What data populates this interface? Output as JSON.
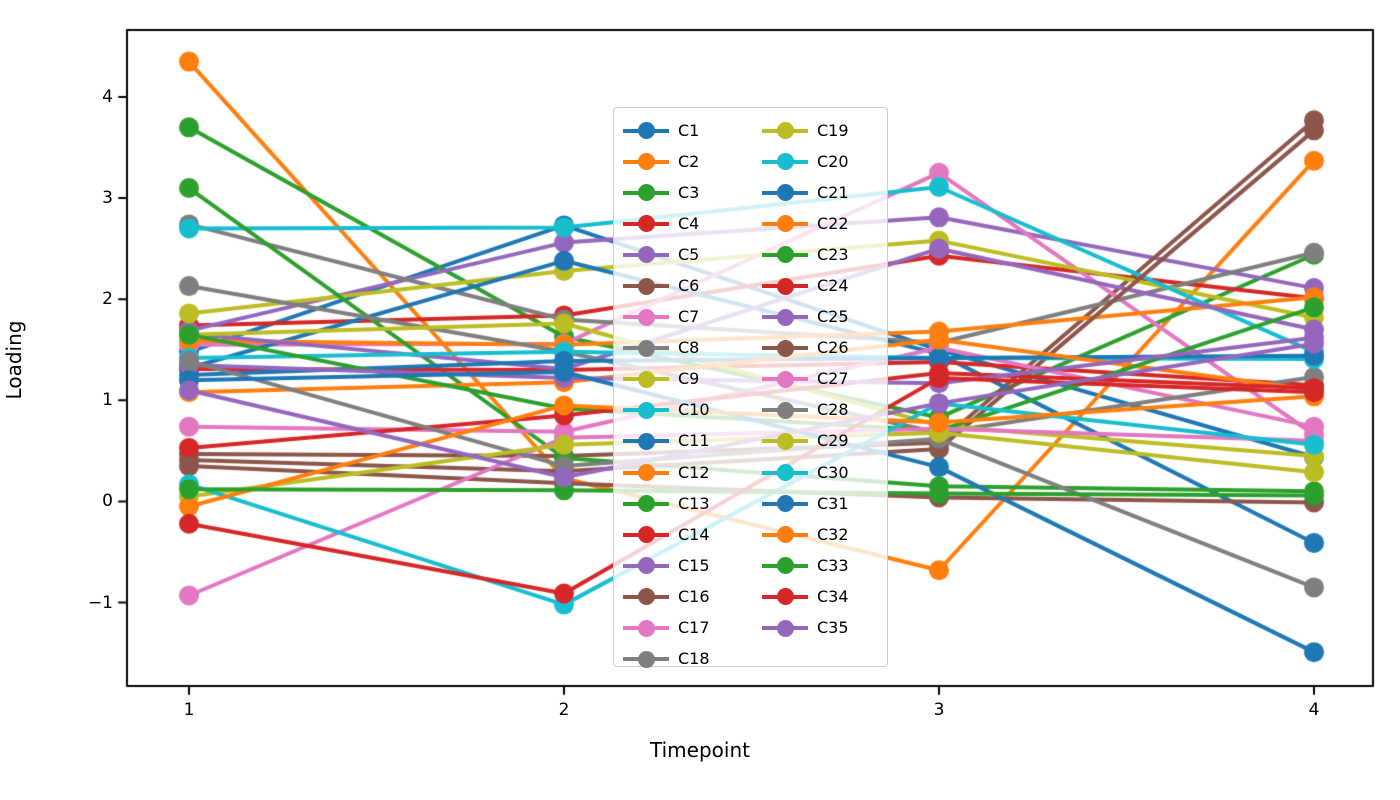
{
  "figure": {
    "background": "#ffffff"
  },
  "chart_data": {
    "type": "line",
    "title": "",
    "xlabel": "Timepoint",
    "ylabel": "Loading",
    "x": [
      1,
      2,
      3,
      4
    ],
    "xticks": [
      "1",
      "2",
      "3",
      "4"
    ],
    "yticks": [
      -1,
      0,
      1,
      2,
      3,
      4
    ],
    "ytick_labels": [
      "−1",
      "0",
      "1",
      "2",
      "3",
      "4"
    ],
    "xlim": [
      0.84,
      4.16
    ],
    "ylim": [
      -1.83,
      4.66
    ],
    "grid": false,
    "legend": {
      "location": "center inside",
      "columns": 2,
      "frame_alpha": 0.8,
      "border_color": "#cccccc"
    },
    "series": [
      {
        "name": "C1",
        "color": "#1f77b4",
        "values": [
          1.48,
          2.73,
          1.5,
          0.44
        ]
      },
      {
        "name": "C2",
        "color": "#ff7f0e",
        "values": [
          4.35,
          0.23,
          -0.68,
          3.37
        ]
      },
      {
        "name": "C3",
        "color": "#2ca02c",
        "values": [
          3.7,
          1.63,
          0.83,
          2.44
        ]
      },
      {
        "name": "C4",
        "color": "#d62728",
        "values": [
          1.74,
          1.84,
          2.43,
          2.01
        ]
      },
      {
        "name": "C5",
        "color": "#9467bd",
        "values": [
          1.69,
          2.56,
          2.81,
          2.11
        ]
      },
      {
        "name": "C6",
        "color": "#8c564b",
        "values": [
          0.47,
          0.45,
          0.58,
          3.77
        ]
      },
      {
        "name": "C7",
        "color": "#e377c2",
        "values": [
          1.55,
          1.56,
          3.25,
          0.66
        ]
      },
      {
        "name": "C8",
        "color": "#7f7f7f",
        "values": [
          2.74,
          1.8,
          1.57,
          2.46
        ]
      },
      {
        "name": "C9",
        "color": "#bcbd22",
        "values": [
          1.86,
          2.28,
          2.58,
          1.82
        ]
      },
      {
        "name": "C10",
        "color": "#17becf",
        "values": [
          2.7,
          2.71,
          3.11,
          1.48
        ]
      },
      {
        "name": "C11",
        "color": "#1f77b4",
        "values": [
          1.32,
          2.38,
          1.46,
          -0.41
        ]
      },
      {
        "name": "C12",
        "color": "#ff7f0e",
        "values": [
          1.59,
          1.55,
          1.68,
          2.02
        ]
      },
      {
        "name": "C13",
        "color": "#2ca02c",
        "values": [
          3.1,
          0.43,
          0.15,
          0.1
        ]
      },
      {
        "name": "C14",
        "color": "#d62728",
        "values": [
          1.31,
          1.3,
          1.38,
          1.15
        ]
      },
      {
        "name": "C15",
        "color": "#9467bd",
        "values": [
          1.66,
          1.31,
          2.5,
          1.7
        ]
      },
      {
        "name": "C16",
        "color": "#8c564b",
        "values": [
          0.41,
          0.3,
          0.52,
          3.67
        ]
      },
      {
        "name": "C17",
        "color": "#e377c2",
        "values": [
          0.74,
          0.69,
          1.52,
          0.74
        ]
      },
      {
        "name": "C18",
        "color": "#7f7f7f",
        "values": [
          2.13,
          1.48,
          0.68,
          1.23
        ]
      },
      {
        "name": "C19",
        "color": "#bcbd22",
        "values": [
          1.65,
          1.76,
          0.75,
          0.45
        ]
      },
      {
        "name": "C20",
        "color": "#17becf",
        "values": [
          1.42,
          1.48,
          1.42,
          1.41
        ]
      },
      {
        "name": "C21",
        "color": "#1f77b4",
        "values": [
          1.25,
          1.39,
          1.42,
          1.44
        ]
      },
      {
        "name": "C22",
        "color": "#ff7f0e",
        "values": [
          1.08,
          1.18,
          1.6,
          1.1
        ]
      },
      {
        "name": "C23",
        "color": "#2ca02c",
        "values": [
          1.65,
          0.92,
          0.7,
          1.92
        ]
      },
      {
        "name": "C24",
        "color": "#d62728",
        "values": [
          0.53,
          0.85,
          1.27,
          1.12
        ]
      },
      {
        "name": "C25",
        "color": "#9467bd",
        "values": [
          1.35,
          1.22,
          1.17,
          1.62
        ]
      },
      {
        "name": "C26",
        "color": "#8c564b",
        "values": [
          0.35,
          0.18,
          0.04,
          -0.01
        ]
      },
      {
        "name": "C27",
        "color": "#e377c2",
        "values": [
          -0.93,
          0.63,
          0.72,
          0.6
        ]
      },
      {
        "name": "C28",
        "color": "#7f7f7f",
        "values": [
          1.39,
          0.35,
          0.62,
          -0.85
        ]
      },
      {
        "name": "C29",
        "color": "#bcbd22",
        "values": [
          0.05,
          0.56,
          0.68,
          0.29
        ]
      },
      {
        "name": "C30",
        "color": "#17becf",
        "values": [
          0.17,
          -1.02,
          0.97,
          0.56
        ]
      },
      {
        "name": "C31",
        "color": "#1f77b4",
        "values": [
          1.2,
          1.28,
          0.34,
          -1.49
        ]
      },
      {
        "name": "C32",
        "color": "#ff7f0e",
        "values": [
          -0.05,
          0.95,
          0.78,
          1.04
        ]
      },
      {
        "name": "C33",
        "color": "#2ca02c",
        "values": [
          0.12,
          0.11,
          0.08,
          0.06
        ]
      },
      {
        "name": "C34",
        "color": "#d62728",
        "values": [
          -0.22,
          -0.91,
          1.22,
          1.08
        ]
      },
      {
        "name": "C35",
        "color": "#9467bd",
        "values": [
          1.1,
          0.24,
          0.97,
          1.56
        ]
      }
    ]
  }
}
